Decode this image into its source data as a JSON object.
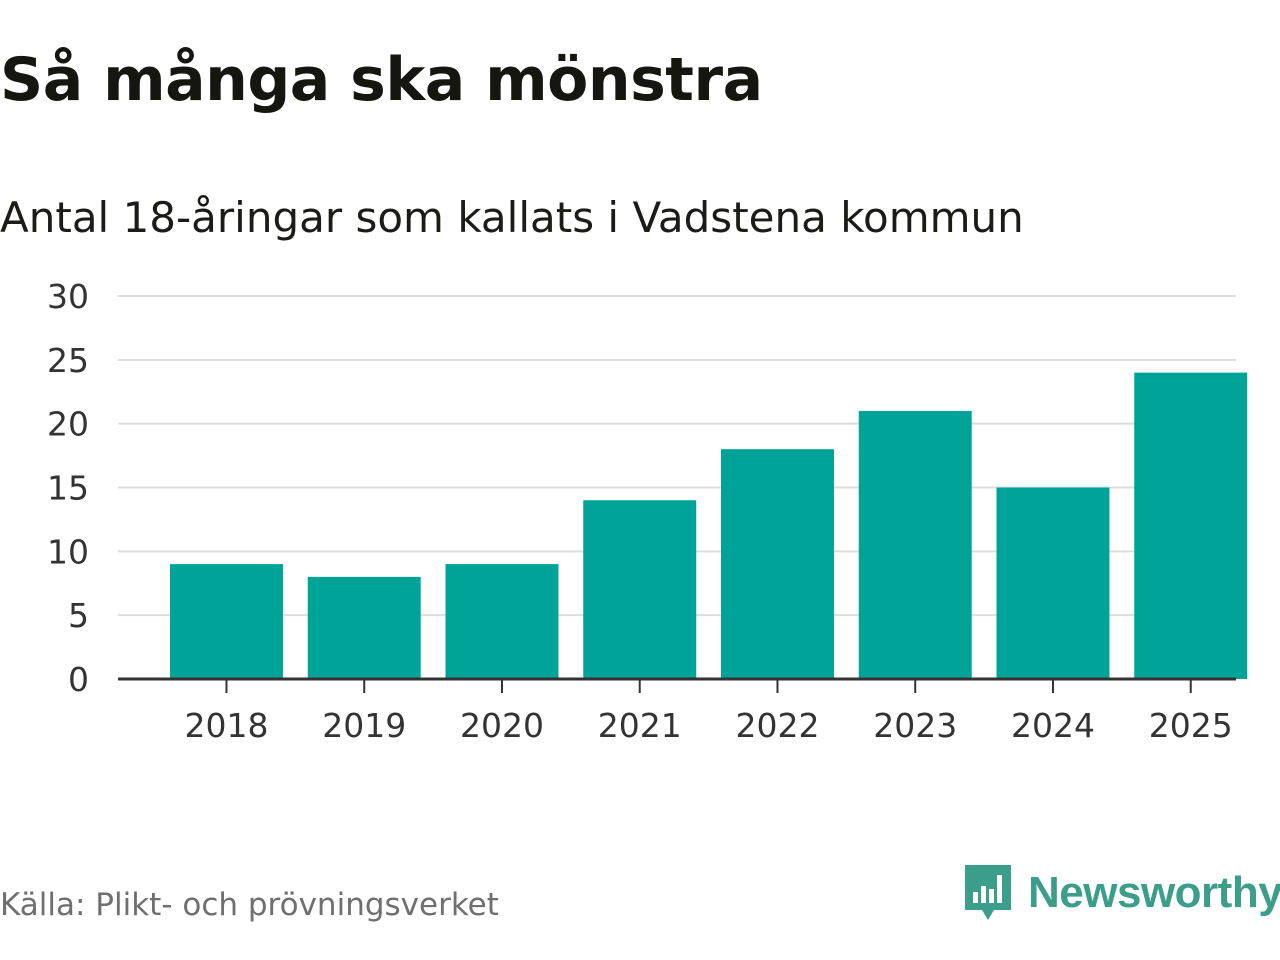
{
  "title": "Så många ska mönstra",
  "subtitle": "Antal 18-åringar som kallats i Vadstena kommun",
  "source": "Källa: Plikt- och prövningsverket",
  "brand": {
    "name": "Newsworthy",
    "icon": "newsworthy-logo-icon",
    "color": "#3b9e8a"
  },
  "colors": {
    "bar": "#00a398",
    "grid": "#dddddd",
    "axis": "#333333",
    "tick_text": "#333333"
  },
  "chart_data": {
    "type": "bar",
    "title": "Så många ska mönstra",
    "subtitle": "Antal 18-åringar som kallats i Vadstena kommun",
    "categories": [
      "2018",
      "2019",
      "2020",
      "2021",
      "2022",
      "2023",
      "2024",
      "2025"
    ],
    "values": [
      9,
      8,
      9,
      14,
      18,
      21,
      15,
      24
    ],
    "ylim": [
      0,
      30
    ],
    "yticks": [
      0,
      5,
      10,
      15,
      20,
      25,
      30
    ],
    "grid": true,
    "legend": "none"
  }
}
